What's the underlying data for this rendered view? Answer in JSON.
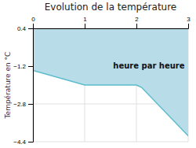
{
  "chart_data": {
    "type": "area",
    "title": "Evolution de la température",
    "y_label": "Température en °C",
    "annotation": {
      "text": "heure par heure",
      "x": 1.55,
      "y": -1.05
    },
    "x": [
      0,
      1,
      2,
      2.1,
      3
    ],
    "series": [
      {
        "type": "area",
        "color": "#b8dce8",
        "values": [
          -1.38,
          -2.0,
          -2.0,
          -2.1,
          -4.15
        ],
        "fill_top": 0.4
      },
      {
        "type": "line",
        "color": "#5bbccc",
        "values": [
          -1.38,
          -2.0,
          -2.0,
          -2.1,
          -4.15
        ]
      }
    ],
    "xlim": [
      0,
      3
    ],
    "xticks": [
      0,
      1,
      2,
      3
    ],
    "ylim": [
      -4.4,
      0.4
    ],
    "yticks": [
      0.4,
      -1.2,
      -2.8,
      -4.4
    ],
    "grid": true
  }
}
